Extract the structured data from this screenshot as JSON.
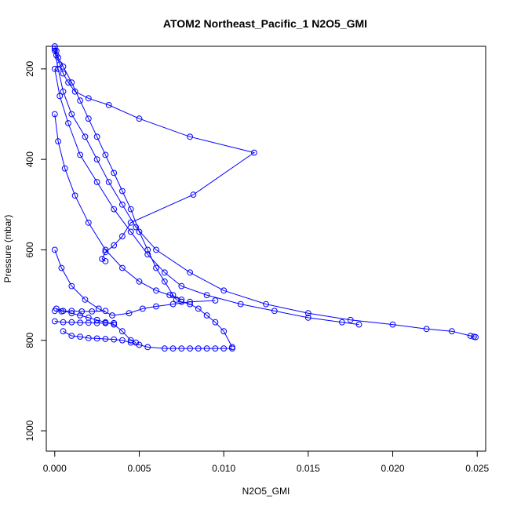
{
  "chart_data": {
    "type": "line",
    "title": "ATOM2 Northeast_Pacific_1 N2O5_GMI",
    "xlabel": "N2O5_GMI",
    "ylabel": "Pressure (mbar)",
    "xlim": [
      -0.0005,
      0.0255
    ],
    "ylim": [
      1045,
      150
    ],
    "y_reversed": true,
    "grid": false,
    "x_ticks": [
      0.0,
      0.005,
      0.01,
      0.015,
      0.02,
      0.025
    ],
    "x_tick_labels": [
      "0.000",
      "0.005",
      "0.010",
      "0.015",
      "0.020",
      "0.025"
    ],
    "y_ticks": [
      200,
      400,
      600,
      800,
      1000
    ],
    "y_tick_labels": [
      "200",
      "400",
      "600",
      "800",
      "1000"
    ],
    "series_color": "#0000ff",
    "marker": "open-circle",
    "series": [
      {
        "x": [
          0.0,
          0.0001,
          0.0002,
          0.0005,
          0.001,
          0.0015,
          0.002,
          0.0025,
          0.003,
          0.0035,
          0.004,
          0.0045,
          0.005,
          0.0055,
          0.006,
          0.0065,
          0.007,
          0.0072,
          0.0075,
          0.008,
          0.0085,
          0.009,
          0.0095,
          0.01,
          0.0105
        ],
        "y": [
          150,
          160,
          175,
          195,
          230,
          270,
          310,
          350,
          390,
          430,
          470,
          510,
          560,
          600,
          640,
          670,
          700,
          710,
          715,
          720,
          730,
          745,
          760,
          780,
          815
        ]
      },
      {
        "x": [
          0.0,
          0.0001,
          0.0003,
          0.0005,
          0.0008,
          0.0012,
          0.002,
          0.0032,
          0.005,
          0.008,
          0.0118,
          0.0082,
          0.0045,
          0.004,
          0.0035,
          0.003,
          0.0028,
          0.003
        ],
        "y": [
          155,
          170,
          190,
          210,
          230,
          250,
          265,
          280,
          310,
          350,
          385,
          478,
          540,
          570,
          590,
          605,
          620,
          625
        ]
      },
      {
        "x": [
          0.0,
          0.0002,
          0.0005,
          0.001,
          0.0018,
          0.0025,
          0.0032,
          0.004,
          0.0048,
          0.006,
          0.008,
          0.01,
          0.0125,
          0.015,
          0.0175,
          0.02,
          0.022,
          0.0235,
          0.0246,
          0.0248,
          0.0249
        ],
        "y": [
          160,
          200,
          250,
          300,
          350,
          400,
          450,
          500,
          550,
          600,
          650,
          690,
          720,
          740,
          755,
          765,
          775,
          780,
          790,
          792,
          793
        ]
      },
      {
        "x": [
          0.0,
          0.0003,
          0.0008,
          0.0015,
          0.0025,
          0.0035,
          0.0045,
          0.0055,
          0.0065,
          0.0075,
          0.009,
          0.011,
          0.013,
          0.015,
          0.017,
          0.018
        ],
        "y": [
          200,
          260,
          320,
          390,
          450,
          510,
          560,
          610,
          650,
          680,
          700,
          720,
          735,
          750,
          760,
          765
        ]
      },
      {
        "x": [
          0.0,
          0.0002,
          0.0006,
          0.0012,
          0.002,
          0.003,
          0.004,
          0.005,
          0.006,
          0.0068,
          0.0075
        ],
        "y": [
          300,
          360,
          420,
          480,
          540,
          600,
          640,
          670,
          690,
          700,
          710
        ]
      },
      {
        "x": [
          0.0001,
          0.0005,
          0.001,
          0.0015,
          0.002,
          0.0025,
          0.003,
          0.0035,
          0.004,
          0.0045,
          0.0048
        ],
        "y": [
          730,
          735,
          740,
          745,
          750,
          755,
          760,
          765,
          780,
          800,
          805
        ]
      },
      {
        "x": [
          0.0005,
          0.001,
          0.0015,
          0.002,
          0.0025,
          0.003,
          0.0035,
          0.004,
          0.0045,
          0.005,
          0.0055,
          0.0065,
          0.007,
          0.0075,
          0.008,
          0.0085,
          0.009,
          0.0095,
          0.01,
          0.0105
        ],
        "y": [
          780,
          790,
          792,
          795,
          796,
          797,
          798,
          800,
          805,
          810,
          815,
          818,
          818,
          818,
          818,
          818,
          818,
          818,
          818,
          818
        ]
      },
      {
        "x": [
          0.0,
          0.0004,
          0.001,
          0.0018,
          0.0026,
          0.0034,
          0.0044,
          0.0052,
          0.006,
          0.007,
          0.008,
          0.0095
        ],
        "y": [
          600,
          640,
          680,
          710,
          730,
          745,
          740,
          730,
          725,
          720,
          715,
          712
        ]
      },
      {
        "x": [
          0.0,
          0.0005,
          0.001,
          0.0015,
          0.002,
          0.0025,
          0.003,
          0.0035
        ],
        "y": [
          758,
          760,
          760,
          761,
          761,
          762,
          762,
          762
        ]
      },
      {
        "x": [
          0.0,
          0.0004,
          0.001,
          0.0016,
          0.0022,
          0.003
        ],
        "y": [
          735,
          736,
          735,
          736,
          736,
          735
        ]
      }
    ]
  }
}
